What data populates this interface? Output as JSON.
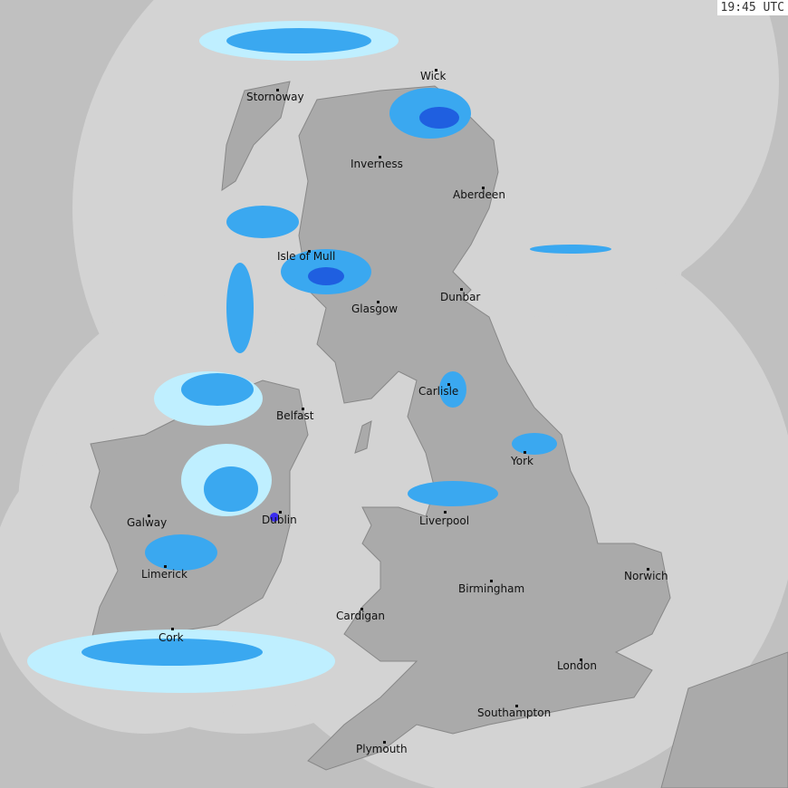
{
  "timestamp": "19:45 UTC",
  "colors": {
    "outside": "#c0c0c0",
    "coverage": "#d3d3d3",
    "land": "#aaaaaa",
    "land_dark": "#999999",
    "rain_light": "#bfefff",
    "rain_mid": "#3aa8f0",
    "rain_heavy": "#1f5fe0"
  },
  "cities": [
    {
      "name": "Stornoway"
    },
    {
      "name": "Wick"
    },
    {
      "name": "Inverness"
    },
    {
      "name": "Aberdeen"
    },
    {
      "name": "Isle of Mull"
    },
    {
      "name": "Glasgow"
    },
    {
      "name": "Dunbar"
    },
    {
      "name": "Carlisle"
    },
    {
      "name": "Belfast"
    },
    {
      "name": "York"
    },
    {
      "name": "Galway"
    },
    {
      "name": "Dublin"
    },
    {
      "name": "Liverpool"
    },
    {
      "name": "Limerick"
    },
    {
      "name": "Norwich"
    },
    {
      "name": "Birmingham"
    },
    {
      "name": "Cardigan"
    },
    {
      "name": "Cork"
    },
    {
      "name": "London"
    },
    {
      "name": "Southampton"
    },
    {
      "name": "Plymouth"
    }
  ]
}
